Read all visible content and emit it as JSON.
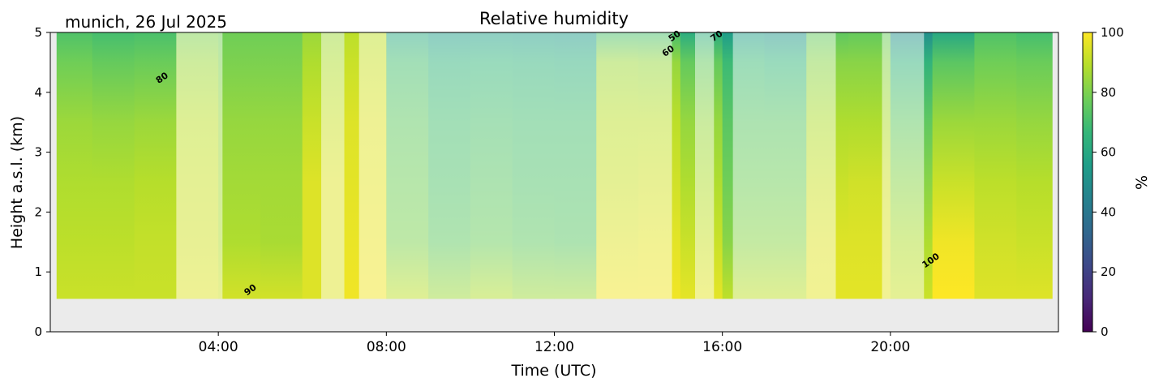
{
  "chart_data": {
    "type": "heatmap",
    "title": "Relative humidity",
    "subtitle": "munich, 26 Jul 2025",
    "xlabel": "Time (UTC)",
    "ylabel": "Height a.s.l. (km)",
    "xlim": [
      0,
      24
    ],
    "ylim": [
      0,
      5
    ],
    "xticks": [
      {
        "value": 4,
        "label": "04:00"
      },
      {
        "value": 8,
        "label": "08:00"
      },
      {
        "value": 12,
        "label": "12:00"
      },
      {
        "value": 16,
        "label": "16:00"
      },
      {
        "value": 20,
        "label": "20:00"
      }
    ],
    "yticks": [
      0,
      1,
      2,
      3,
      4,
      5
    ],
    "colorbar": {
      "label": "%",
      "range": [
        0,
        100
      ],
      "ticks": [
        0,
        20,
        40,
        60,
        80,
        100
      ],
      "colormap": [
        "#440154",
        "#414487",
        "#2a788e",
        "#22a884",
        "#7ad151",
        "#fde725"
      ]
    },
    "data_start_time": 0.15,
    "data_end_time": 23.85,
    "data_bottom_height": 0.55,
    "heights": [
      0.6,
      1.5,
      2.5,
      3.5,
      4.5,
      5.0
    ],
    "hours": [
      0,
      1,
      2,
      3,
      4,
      5,
      6,
      7,
      8,
      9,
      10,
      11,
      12,
      13,
      14,
      15,
      16,
      17,
      18,
      19,
      20,
      21,
      22,
      23
    ],
    "rh": [
      [
        92,
        90,
        88,
        85,
        78,
        72
      ],
      [
        92,
        90,
        88,
        84,
        76,
        70
      ],
      [
        92,
        91,
        89,
        85,
        77,
        71
      ],
      [
        95,
        93,
        92,
        90,
        85,
        80
      ],
      [
        93,
        88,
        86,
        84,
        80,
        78
      ],
      [
        93,
        87,
        86,
        84,
        80,
        78
      ],
      [
        95,
        95,
        95,
        92,
        88,
        85
      ],
      [
        98,
        97,
        96,
        95,
        92,
        90
      ],
      [
        90,
        80,
        78,
        75,
        70,
        60
      ],
      [
        85,
        75,
        72,
        70,
        65,
        55
      ],
      [
        88,
        77,
        74,
        71,
        66,
        56
      ],
      [
        85,
        75,
        72,
        70,
        65,
        55
      ],
      [
        85,
        74,
        72,
        70,
        64,
        54
      ],
      [
        98,
        95,
        92,
        90,
        85,
        70
      ],
      [
        98,
        96,
        93,
        90,
        84,
        70
      ],
      [
        96,
        92,
        88,
        84,
        76,
        62
      ],
      [
        90,
        82,
        78,
        74,
        68,
        55
      ],
      [
        90,
        82,
        78,
        74,
        66,
        52
      ],
      [
        96,
        95,
        92,
        88,
        82,
        75
      ],
      [
        96,
        95,
        93,
        88,
        82,
        76
      ],
      [
        92,
        88,
        82,
        75,
        65,
        50
      ],
      [
        100,
        98,
        92,
        85,
        74,
        60
      ],
      [
        95,
        93,
        90,
        85,
        78,
        72
      ],
      [
        95,
        92,
        89,
        84,
        77,
        70
      ]
    ],
    "low_quality_periods": [
      [
        3.0,
        4.1
      ],
      [
        6.45,
        7.0
      ],
      [
        7.35,
        8.0
      ],
      [
        8.0,
        14.8
      ],
      [
        15.35,
        15.8
      ],
      [
        16.25,
        18.7
      ],
      [
        19.8,
        20.8
      ]
    ],
    "contour_labels": [
      {
        "text": "80",
        "time": 2.7,
        "height": 4.2
      },
      {
        "text": "90",
        "time": 4.8,
        "height": 0.66
      },
      {
        "text": "60",
        "time": 14.75,
        "height": 4.65
      },
      {
        "text": "50",
        "time": 14.9,
        "height": 4.9
      },
      {
        "text": "70",
        "time": 15.9,
        "height": 4.9
      },
      {
        "text": "100",
        "time": 21.0,
        "height": 1.15
      }
    ]
  }
}
